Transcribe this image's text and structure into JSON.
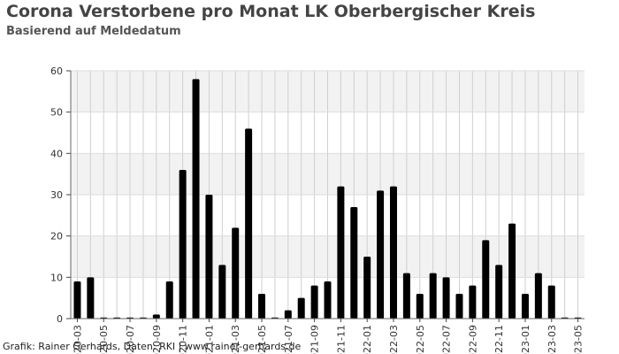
{
  "title": "Corona Verstorbene pro Monat LK Oberbergischer Kreis",
  "subtitle": "Basierend auf Meldedatum",
  "credit": "Grafik: Rainer Gerhards, Daten: RKI | www.rainer-gerhards.de",
  "chart_data": {
    "type": "bar",
    "title": "Corona Verstorbene pro Monat LK Oberbergischer Kreis",
    "subtitle": "Basierend auf Meldedatum",
    "xlabel": "",
    "ylabel": "",
    "ylim": [
      0,
      60
    ],
    "yticks": [
      0,
      10,
      20,
      30,
      40,
      50,
      60
    ],
    "grid": true,
    "legend": "none",
    "bar_color": "#000000",
    "band_color": "#f2f2f2",
    "categories": [
      "2020-03",
      "2020-04",
      "2020-05",
      "2020-06",
      "2020-07",
      "2020-08",
      "2020-09",
      "2020-10",
      "2020-11",
      "2020-12",
      "2021-01",
      "2021-02",
      "2021-03",
      "2021-04",
      "2021-05",
      "2021-06",
      "2021-07",
      "2021-08",
      "2021-09",
      "2021-10",
      "2021-11",
      "2021-12",
      "2022-01",
      "2022-02",
      "2022-03",
      "2022-04",
      "2022-05",
      "2022-06",
      "2022-07",
      "2022-08",
      "2022-09",
      "2022-10",
      "2022-11",
      "2022-12",
      "2023-01",
      "2023-02",
      "2023-03",
      "2023-04",
      "2023-05"
    ],
    "tick_labels": [
      "2020-03",
      "2020-05",
      "2020-07",
      "2020-09",
      "2020-11",
      "2021-01",
      "2021-03",
      "2021-05",
      "2021-07",
      "2021-09",
      "2021-11",
      "2022-01",
      "2022-03",
      "2022-05",
      "2022-07",
      "2022-09",
      "2022-11",
      "2023-01",
      "2023-03",
      "2023-05"
    ],
    "values": [
      9,
      10,
      0,
      0,
      0,
      0,
      1,
      9,
      36,
      58,
      30,
      13,
      22,
      46,
      6,
      0,
      2,
      5,
      8,
      9,
      32,
      27,
      15,
      31,
      32,
      11,
      6,
      11,
      10,
      6,
      8,
      19,
      13,
      23,
      6,
      11,
      8,
      0,
      0
    ]
  }
}
